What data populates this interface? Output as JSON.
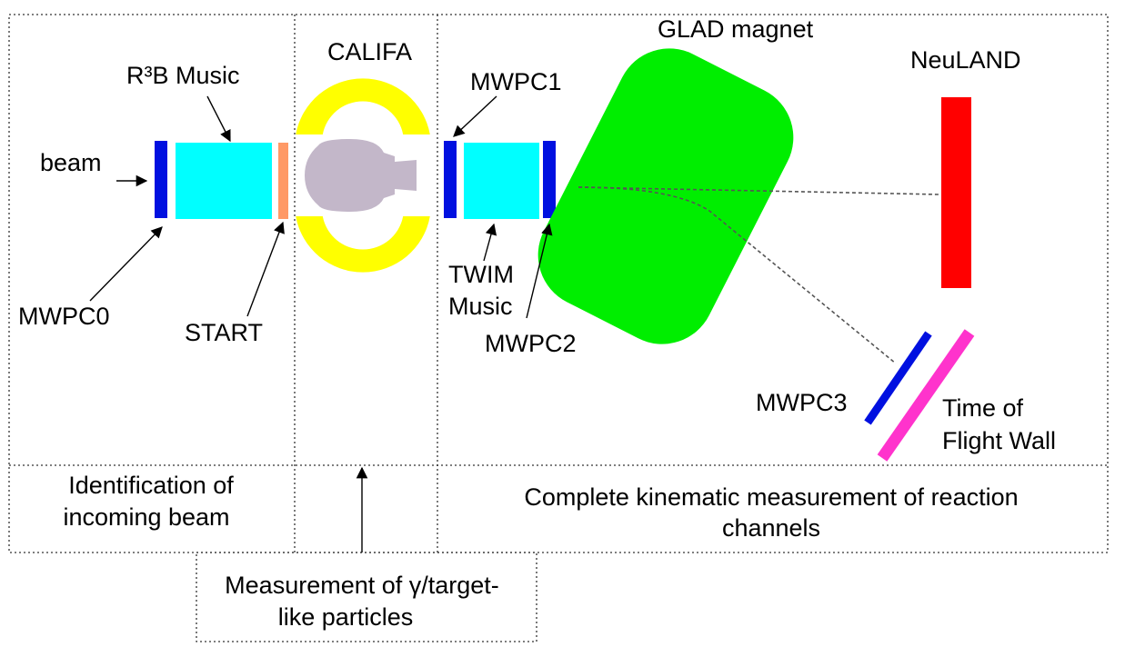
{
  "labels": {
    "beam": "beam",
    "r3b_music": "R³B Music",
    "califa": "CALIFA",
    "mwpc1": "MWPC1",
    "glad": "GLAD magnet",
    "neuland": "NeuLAND",
    "mwpc0": "MWPC0",
    "start": "START",
    "twim_line1": "TWIM",
    "twim_line2": "Music",
    "mwpc2": "MWPC2",
    "mwpc3": "MWPC3",
    "tof_line1": "Time of",
    "tof_line2": "Flight Wall"
  },
  "regions": {
    "identification_line1": "Identification of",
    "identification_line2": "incoming beam",
    "kinematic_line1": "Complete kinematic measurement of reaction",
    "kinematic_line2": "channels",
    "gamma_line1": "Measurement of γ/target-",
    "gamma_line2": "like particles"
  },
  "colors": {
    "mwpc": "#0010e0",
    "music": "#00ffff",
    "start": "#ff9966",
    "califa": "#ffff00",
    "target_chamber": "#c3b7c9",
    "glad": "#00ee00",
    "neuland": "#ff0000",
    "tof_wall": "#ff33cc",
    "trajectory": "#555555"
  }
}
